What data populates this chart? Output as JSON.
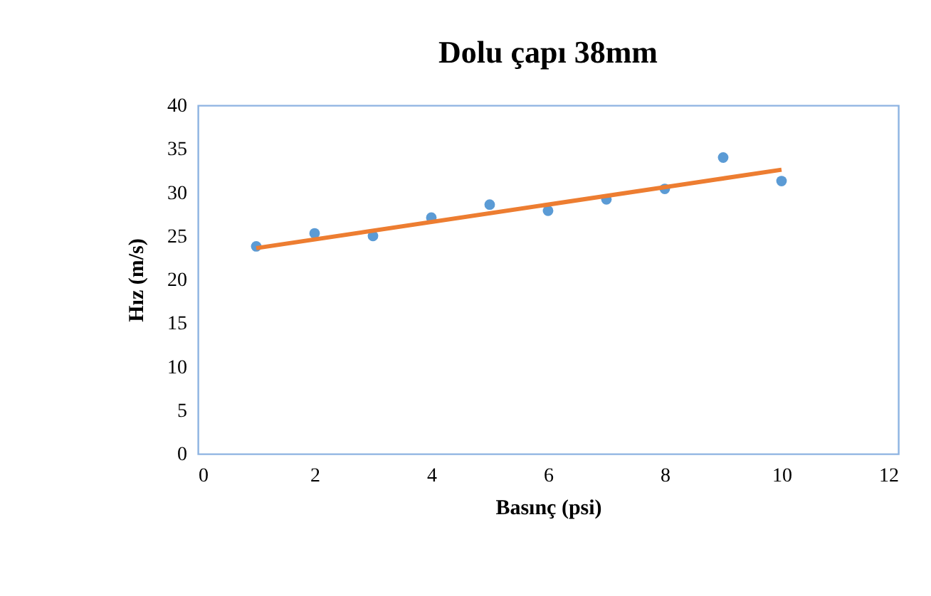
{
  "chart_data": {
    "type": "scatter",
    "title": "Dolu çapı 38mm",
    "xlabel": "Basınç (psi)",
    "ylabel": "Hız (m/s)",
    "xlim": [
      0,
      12
    ],
    "xticks": [
      0,
      2,
      4,
      6,
      8,
      10,
      12
    ],
    "ylim": [
      0,
      40
    ],
    "yticks": [
      0,
      5,
      10,
      15,
      20,
      25,
      30,
      35,
      40
    ],
    "grid": false,
    "marker": "circle",
    "series": [
      {
        "color": "#5b9bd5",
        "x": [
          1,
          2,
          3,
          4,
          5,
          6,
          7,
          8,
          9,
          10
        ],
        "values": [
          23.8,
          25.3,
          25.0,
          27.1,
          28.6,
          27.9,
          29.2,
          30.4,
          34.0,
          31.3
        ]
      },
      {
        "type": "line",
        "color": "#ed7d31",
        "x": [
          1,
          10
        ],
        "values": [
          23.6,
          32.6
        ],
        "line_style": "solid",
        "marker": "none"
      }
    ]
  }
}
